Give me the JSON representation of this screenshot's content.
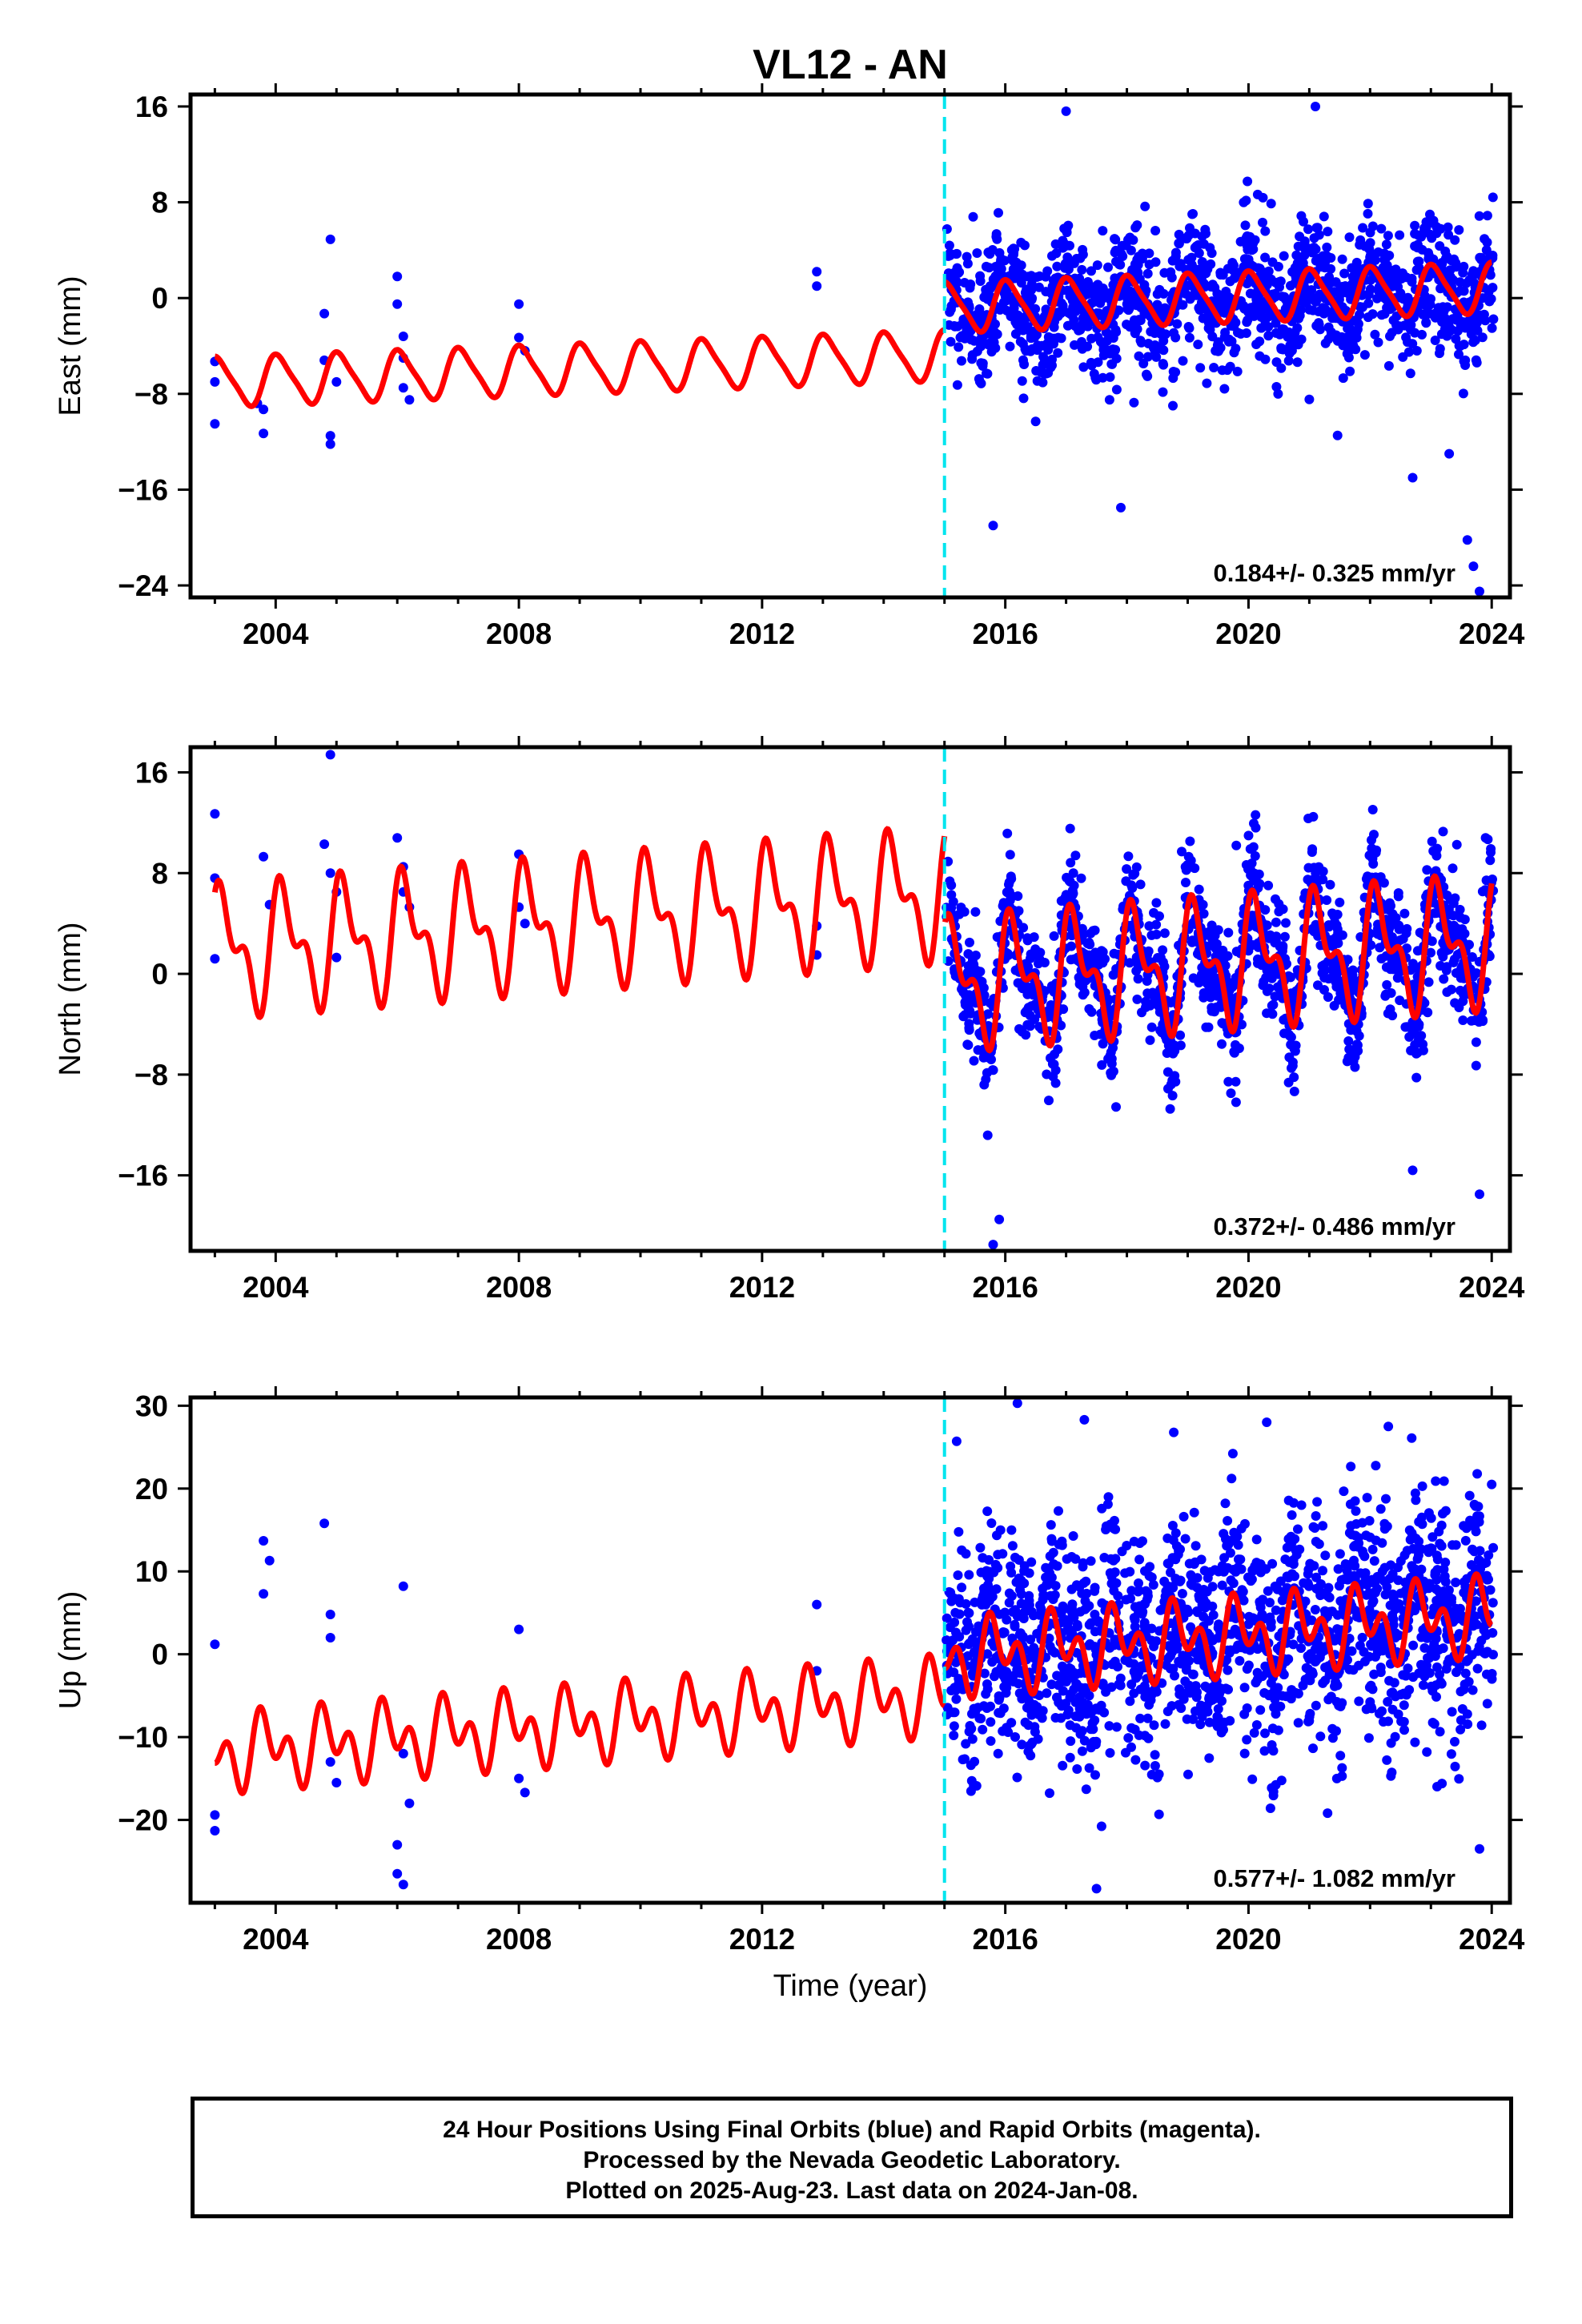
{
  "title": "VL12 - AN",
  "xlabel": "Time (year)",
  "footer": {
    "line1": "24 Hour Positions Using Final Orbits (blue) and Rapid Orbits (magenta).",
    "line2": "Processed by the Nevada Geodetic Laboratory.",
    "line3": "Plotted on 2025-Aug-23. Last data on 2024-Jan-08."
  },
  "colors": {
    "data": "#0000ff",
    "model": "#ff0000",
    "break": "#00e5ee",
    "frame": "#000000"
  },
  "chart_data": [
    {
      "type": "scatter",
      "name": "east",
      "ylabel": "East (mm)",
      "xlim": [
        2002.6,
        2024.3
      ],
      "ylim": [
        -25,
        17
      ],
      "xticks": [
        2004,
        2008,
        2012,
        2016,
        2020,
        2024
      ],
      "yticks": [
        -24,
        -16,
        -8,
        0,
        8,
        16
      ],
      "break_line_x": 2015.0,
      "velocity_text": "0.184+/- 0.325 mm/yr",
      "model": {
        "slope": 0.184,
        "offset_pre": -4.8,
        "offset_post": -0.8,
        "amp_annual": 2.0,
        "amp_semi": 0.4,
        "phase": 0.2,
        "ref_year": 2015
      },
      "points_sparse": [
        [
          2003.0,
          -5.3
        ],
        [
          2003.0,
          -7.0
        ],
        [
          2003.0,
          -10.5
        ],
        [
          2003.7,
          -8.8
        ],
        [
          2003.8,
          -9.3
        ],
        [
          2003.8,
          -11.3
        ],
        [
          2004.8,
          -1.3
        ],
        [
          2004.8,
          -5.2
        ],
        [
          2004.9,
          -11.5
        ],
        [
          2004.9,
          -12.2
        ],
        [
          2004.9,
          4.9
        ],
        [
          2005.0,
          -7.0
        ],
        [
          2006.0,
          1.8
        ],
        [
          2006.0,
          -0.5
        ],
        [
          2006.1,
          -3.2
        ],
        [
          2006.1,
          -5.0
        ],
        [
          2006.1,
          -7.5
        ],
        [
          2006.2,
          -8.5
        ],
        [
          2008.0,
          -0.5
        ],
        [
          2008.0,
          -3.3
        ],
        [
          2008.1,
          -4.4
        ],
        [
          2012.9,
          2.2
        ],
        [
          2012.9,
          1.0
        ],
        [
          2023.6,
          -20.2
        ],
        [
          2023.7,
          -22.4
        ],
        [
          2023.8,
          -24.5
        ],
        [
          2016.5,
          -10.3
        ],
        [
          2015.8,
          -19.0
        ],
        [
          2017.9,
          -17.5
        ],
        [
          2022.7,
          -15.0
        ],
        [
          2023.3,
          -13.0
        ],
        [
          2017.0,
          15.6
        ],
        [
          2021.1,
          16.0
        ]
      ],
      "cloud": {
        "x_start": 2015.0,
        "x_end": 2024.0,
        "count": 1500,
        "scatter": 2.6
      }
    },
    {
      "type": "scatter",
      "name": "north",
      "ylabel": "North (mm)",
      "xlim": [
        2002.6,
        2024.3
      ],
      "ylim": [
        -22,
        18
      ],
      "xticks": [
        2004,
        2008,
        2012,
        2016,
        2020,
        2024
      ],
      "yticks": [
        -16,
        -8,
        0,
        8,
        16
      ],
      "break_line_x": 2015.0,
      "velocity_text": "0.372+/- 0.486 mm/yr",
      "model": {
        "slope": 0.372,
        "offset_pre": 6.3,
        "offset_post": -0.8,
        "amp_annual": 4.0,
        "amp_semi": 2.4,
        "phase": 0.1,
        "ref_year": 2015
      },
      "points_sparse": [
        [
          2003.0,
          12.7
        ],
        [
          2003.0,
          7.6
        ],
        [
          2003.0,
          1.2
        ],
        [
          2003.8,
          9.3
        ],
        [
          2003.9,
          5.5
        ],
        [
          2004.8,
          10.3
        ],
        [
          2004.9,
          17.4
        ],
        [
          2004.9,
          8.0
        ],
        [
          2005.0,
          6.5
        ],
        [
          2005.0,
          1.3
        ],
        [
          2006.0,
          10.8
        ],
        [
          2006.1,
          8.5
        ],
        [
          2006.1,
          6.5
        ],
        [
          2006.2,
          5.3
        ],
        [
          2008.0,
          9.5
        ],
        [
          2008.0,
          5.3
        ],
        [
          2008.1,
          4.0
        ],
        [
          2012.9,
          3.8
        ],
        [
          2012.9,
          1.5
        ],
        [
          2023.2,
          11.3
        ],
        [
          2023.9,
          10.8
        ],
        [
          2015.8,
          -21.5
        ],
        [
          2015.9,
          -19.5
        ],
        [
          2023.8,
          -17.5
        ],
        [
          2022.7,
          -15.6
        ],
        [
          2019.8,
          10.2
        ]
      ],
      "cloud": {
        "x_start": 2015.0,
        "x_end": 2024.0,
        "count": 1500,
        "scatter": 2.4
      }
    },
    {
      "type": "scatter",
      "name": "up",
      "ylabel": "Up (mm)",
      "xlim": [
        2002.6,
        2024.3
      ],
      "ylim": [
        -30,
        31
      ],
      "xticks": [
        2004,
        2008,
        2012,
        2016,
        2020,
        2024
      ],
      "yticks": [
        -20,
        -10,
        0,
        10,
        20,
        30
      ],
      "break_line_x": 2015.0,
      "velocity_text": "0.577+/- 1.082 mm/yr",
      "model": {
        "slope": 0.577,
        "offset_pre": -5.0,
        "offset_post": -0.5,
        "amp_annual": 2.8,
        "amp_semi": 3.0,
        "phase": 0.4,
        "ref_year": 2015
      },
      "points_sparse": [
        [
          2003.0,
          1.2
        ],
        [
          2003.0,
          -19.4
        ],
        [
          2003.0,
          -21.3
        ],
        [
          2003.8,
          13.7
        ],
        [
          2003.8,
          7.3
        ],
        [
          2003.9,
          11.3
        ],
        [
          2004.8,
          15.8
        ],
        [
          2004.9,
          4.8
        ],
        [
          2004.9,
          2.0
        ],
        [
          2004.9,
          -13.0
        ],
        [
          2005.0,
          -15.5
        ],
        [
          2006.0,
          -23.0
        ],
        [
          2006.0,
          -26.5
        ],
        [
          2006.1,
          -27.8
        ],
        [
          2006.1,
          8.2
        ],
        [
          2006.1,
          -12.0
        ],
        [
          2006.2,
          -18.0
        ],
        [
          2008.0,
          3.0
        ],
        [
          2008.0,
          -15.0
        ],
        [
          2008.1,
          -16.7
        ],
        [
          2012.9,
          6.0
        ],
        [
          2012.9,
          -2.0
        ],
        [
          2015.2,
          25.7
        ],
        [
          2016.2,
          30.3
        ],
        [
          2017.5,
          -28.3
        ],
        [
          2017.3,
          28.3
        ],
        [
          2020.3,
          28.0
        ],
        [
          2022.3,
          27.5
        ],
        [
          2023.8,
          -23.5
        ],
        [
          2024.0,
          20.5
        ]
      ],
      "cloud": {
        "x_start": 2015.0,
        "x_end": 2024.0,
        "count": 1800,
        "scatter": 6.5
      }
    }
  ]
}
